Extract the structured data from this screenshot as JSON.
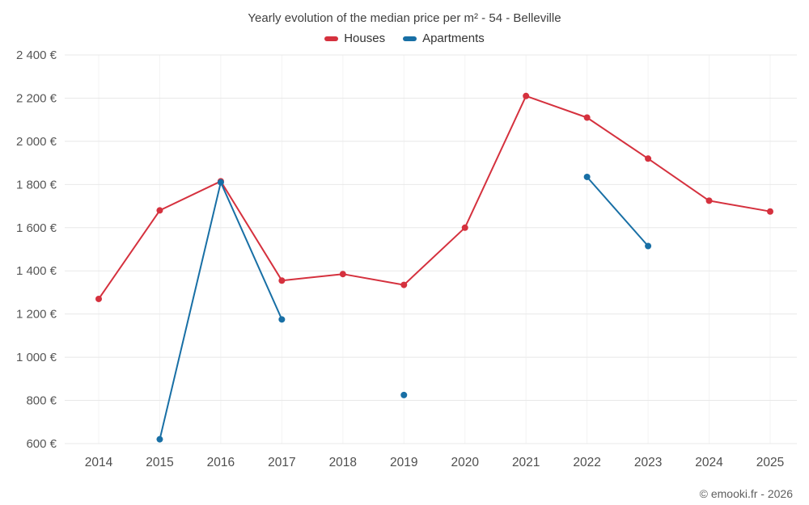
{
  "header": {
    "title": "Yearly evolution of the median price per m² - 54 - Belleville"
  },
  "legend": [
    {
      "label": "Houses",
      "color": "#d5313e"
    },
    {
      "label": "Apartments",
      "color": "#186fa5"
    }
  ],
  "footer": {
    "copyright": "© emooki.fr - 2026"
  },
  "chart_data": {
    "type": "line",
    "title": "Yearly evolution of the median price per m² - 54 - Belleville",
    "xlabel": "",
    "ylabel": "",
    "x": [
      "2014",
      "2015",
      "2016",
      "2017",
      "2018",
      "2019",
      "2020",
      "2021",
      "2022",
      "2023",
      "2024",
      "2025"
    ],
    "series": [
      {
        "name": "Houses",
        "color": "#d5313e",
        "values": [
          1270,
          1680,
          1815,
          1355,
          1385,
          1335,
          1600,
          2210,
          2110,
          1920,
          1725,
          1675
        ]
      },
      {
        "name": "Apartments",
        "color": "#186fa5",
        "values": [
          null,
          620,
          1810,
          1175,
          null,
          825,
          null,
          null,
          1835,
          1515,
          null,
          null
        ]
      }
    ],
    "ylim": [
      600,
      2400
    ],
    "ytick_step": 200,
    "ytick_labels": [
      "600 €",
      "800 €",
      "1 000 €",
      "1 200 €",
      "1 400 €",
      "1 600 €",
      "1 800 €",
      "2 000 €",
      "2 200 €",
      "2 400 €"
    ],
    "grid": true,
    "legend_position": "top"
  }
}
